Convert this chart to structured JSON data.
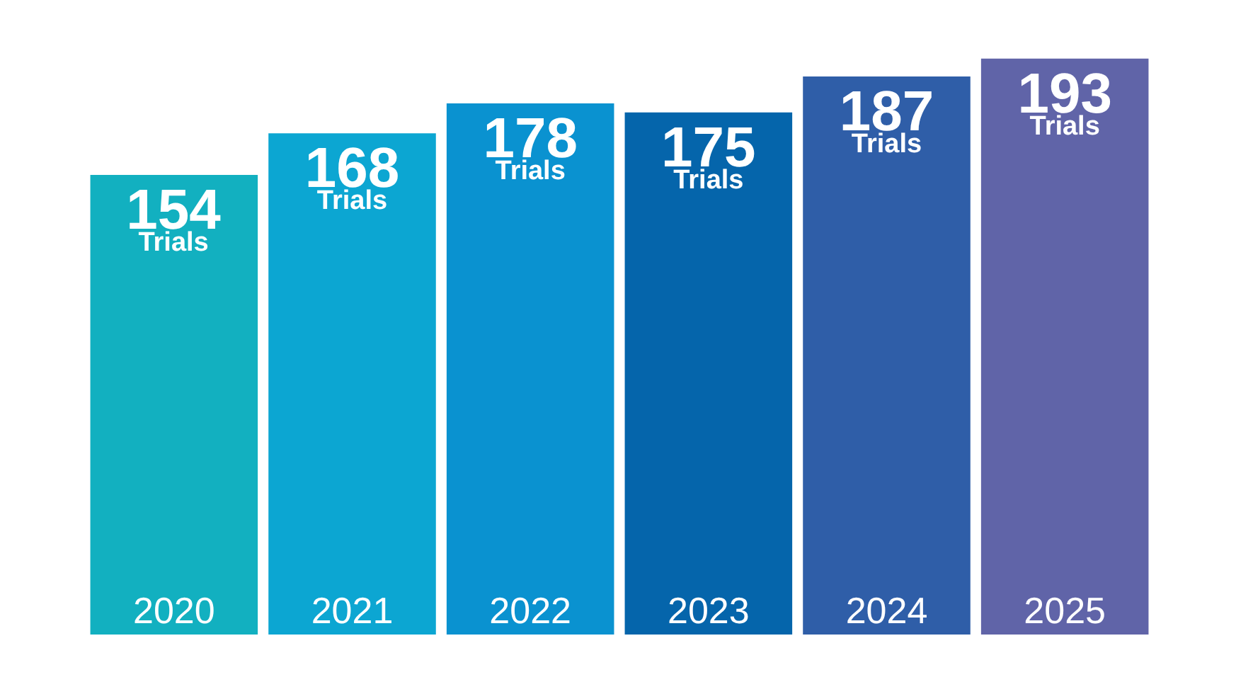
{
  "chart_data": {
    "type": "bar",
    "categories": [
      "2020",
      "2021",
      "2022",
      "2023",
      "2024",
      "2025"
    ],
    "values": [
      154,
      168,
      178,
      175,
      187,
      193
    ],
    "value_labels": [
      "154\nTrials",
      "168\nTrials",
      "178\nTrials",
      "175\nTrials",
      "187\nTrials",
      "193\nTrials"
    ],
    "colors": [
      "#12b0c0",
      "#0ca6d2",
      "#0a92d0",
      "#0565ab",
      "#2f5ea8",
      "#6064a8"
    ]
  }
}
